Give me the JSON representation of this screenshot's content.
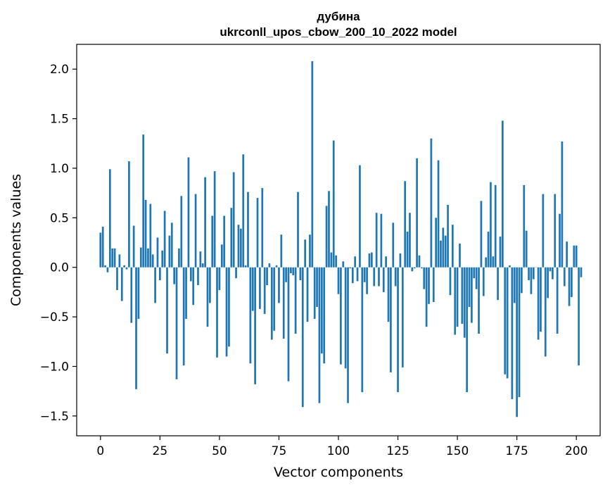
{
  "chart_data": {
    "type": "bar",
    "title_line1": "дубина",
    "title_line2": "ukrconll_upos_cbow_200_10_2022 model",
    "xlabel": "Vector components",
    "ylabel": "Components values",
    "xlim": [
      -10,
      210
    ],
    "ylim": [
      -1.7,
      2.25
    ],
    "xticks": [
      0,
      25,
      50,
      75,
      100,
      125,
      150,
      175,
      200
    ],
    "yticks": [
      2.0,
      1.5,
      1.0,
      0.5,
      0.0,
      -0.5,
      -1.0,
      -1.5
    ],
    "ytick_labels": [
      "2.0",
      "1.5",
      "1.0",
      "0.5",
      "0.0",
      "−0.5",
      "−1.0",
      "−1.5"
    ],
    "bar_color": "#1f77b4",
    "values": [
      0.35,
      0.41,
      0.02,
      -0.05,
      0.99,
      0.19,
      0.19,
      -0.23,
      0.13,
      -0.34,
      0.02,
      -0.02,
      1.07,
      -0.56,
      0.42,
      -1.23,
      -0.52,
      0.2,
      1.34,
      0.68,
      0.19,
      0.64,
      0.13,
      -0.36,
      0.3,
      -0.13,
      0.17,
      0.57,
      -0.87,
      0.32,
      0.45,
      -0.17,
      -1.13,
      0.19,
      0.72,
      -0.99,
      -0.52,
      1.11,
      -0.14,
      -0.38,
      0.74,
      -0.18,
      0.16,
      0.04,
      0.91,
      -0.6,
      -0.36,
      0.52,
      0.97,
      -0.91,
      -0.23,
      0.23,
      0.52,
      -0.9,
      -0.8,
      0.6,
      0.96,
      -0.11,
      0.43,
      0.39,
      1.14,
      0.02,
      0.76,
      -0.97,
      -0.44,
      -1.18,
      0.7,
      -0.42,
      0.8,
      -0.47,
      -0.18,
      0.04,
      -0.73,
      -0.64,
      0.02,
      -0.36,
      0.33,
      -0.72,
      -0.15,
      -1.15,
      -0.06,
      -0.08,
      -0.67,
      0.76,
      -0.13,
      -1.41,
      0.28,
      -0.55,
      0.33,
      2.08,
      -0.52,
      -0.4,
      -1.37,
      -0.87,
      -0.97,
      0.62,
      0.77,
      0.15,
      1.28,
      0.12,
      -0.27,
      -0.98,
      0.06,
      -1.02,
      -1.37,
      -0.01,
      -0.16,
      0.11,
      -0.14,
      1.03,
      -1.26,
      -0.15,
      -0.27,
      0.14,
      0.15,
      -0.19,
      0.55,
      -0.19,
      0.54,
      -0.25,
      0.11,
      -0.55,
      -1.06,
      0.45,
      -0.19,
      -1.26,
      0.14,
      -1.01,
      0.87,
      0.36,
      0.55,
      -0.04,
      -0.01,
      1.1,
      0.12,
      -0.01,
      -0.22,
      -0.6,
      -0.37,
      1.3,
      -0.35,
      0.5,
      1.08,
      0.27,
      0.4,
      0.32,
      0.63,
      -0.28,
      0.43,
      -0.68,
      -0.6,
      0.24,
      -0.57,
      -0.71,
      -1.26,
      -0.4,
      -0.56,
      -0.11,
      -0.22,
      -0.67,
      0.67,
      -0.29,
      0.1,
      0.36,
      0.86,
      0.11,
      0.83,
      -0.33,
      0.31,
      1.48,
      -1.08,
      -1.12,
      0.02,
      -1.33,
      -0.36,
      -1.51,
      -1.31,
      -0.26,
      0.83,
      0.37,
      -0.13,
      -0.27,
      -0.12,
      0.0,
      -0.73,
      -0.65,
      0.74,
      -0.9,
      -0.31,
      -0.04,
      -0.12,
      0.74,
      -0.67,
      0.54,
      1.27,
      -0.19,
      0.26,
      -0.39,
      -0.3,
      0.22,
      0.22,
      -0.99,
      -0.1
    ]
  }
}
